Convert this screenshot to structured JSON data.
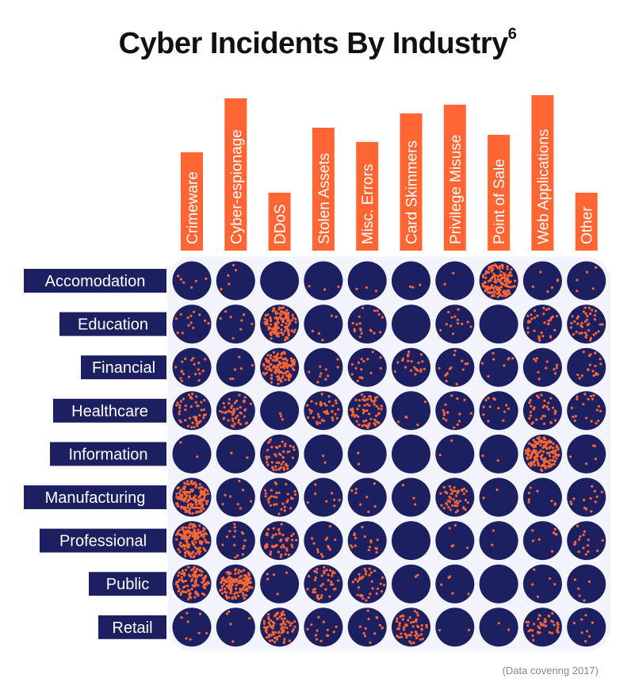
{
  "title": "Cyber Incidents By Industry",
  "title_superscript": "6",
  "source_note": "(Data covering 2017)",
  "colors": {
    "circle": "#1c2060",
    "dot": "#ff6633",
    "header_bg": "#ff6633",
    "header_text": "#ffffff",
    "row_label_bg": "#1c2060",
    "row_label_text": "#ffffff",
    "cell_bg": "#f2f3fb"
  },
  "chart_data": {
    "type": "heatmap",
    "title": "Cyber Incidents By Industry",
    "columns": [
      "Crimeware",
      "Cyber-espionage",
      "DDoS",
      "Stolen Assets",
      "Misc. Errors",
      "Card Skimmers",
      "Privilege Misuse",
      "Point of Sale",
      "Web Applications",
      "Other"
    ],
    "rows": [
      "Accomodation",
      "Education",
      "Financial",
      "Healthcare",
      "Information",
      "Manufacturing",
      "Professional",
      "Public",
      "Retail"
    ],
    "values": [
      [
        4,
        3,
        0,
        2,
        2,
        2,
        1,
        95,
        4,
        3
      ],
      [
        8,
        5,
        80,
        4,
        12,
        0,
        8,
        0,
        20,
        25
      ],
      [
        12,
        4,
        75,
        6,
        10,
        14,
        9,
        5,
        7,
        12
      ],
      [
        30,
        30,
        2,
        25,
        40,
        3,
        10,
        8,
        20,
        12
      ],
      [
        1,
        1,
        30,
        1,
        1,
        0,
        1,
        1,
        95,
        3
      ],
      [
        90,
        5,
        20,
        5,
        5,
        2,
        28,
        1,
        5,
        8
      ],
      [
        85,
        10,
        30,
        8,
        10,
        0,
        3,
        1,
        5,
        10
      ],
      [
        60,
        85,
        3,
        25,
        20,
        1,
        3,
        0,
        3,
        3
      ],
      [
        5,
        3,
        50,
        8,
        8,
        35,
        1,
        1,
        25,
        5
      ]
    ]
  }
}
